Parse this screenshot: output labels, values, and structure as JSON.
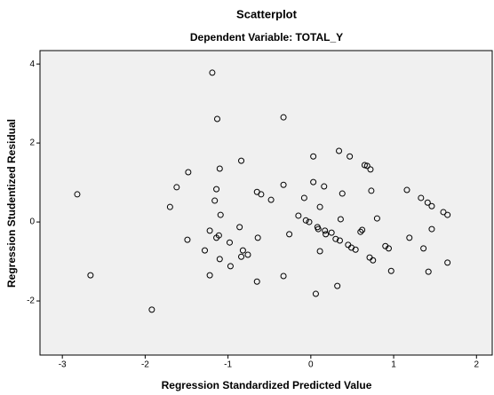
{
  "chart_data": {
    "type": "scatter",
    "title": "Scatterplot",
    "subtitle": "Dependent Variable: TOTAL_Y",
    "x_label": "Regression Standardized Predicted Value",
    "y_label": "Regression Studentized Residual",
    "xlim": [
      -3.27,
      2.19
    ],
    "ylim": [
      -3.37,
      4.34
    ],
    "xticks": [
      -3,
      -2,
      -1,
      0,
      1,
      2
    ],
    "yticks": [
      -2,
      0,
      2,
      4
    ],
    "color": "#000000",
    "background": "#f0f0f0",
    "series": [
      {
        "name": "Residuals",
        "color": "#000000",
        "x": [
          -1.19,
          -1.13,
          -0.33,
          -2.82,
          -2.66,
          -1.92,
          -1.48,
          -1.62,
          -1.7,
          -1.49,
          -1.1,
          -1.14,
          -1.09,
          -1.16,
          -1.22,
          -1.11,
          -1.14,
          -0.98,
          -1.28,
          -1.1,
          -0.97,
          -0.84,
          -1.22,
          -0.84,
          -0.86,
          -0.82,
          -0.76,
          -0.65,
          -0.6,
          -0.48,
          -0.64,
          -0.65,
          -0.33,
          -0.33,
          -0.26,
          -0.15,
          -0.06,
          -0.02,
          -0.08,
          0.03,
          0.03,
          0.16,
          0.11,
          0.08,
          0.09,
          0.17,
          0.18,
          0.3,
          0.25,
          0.35,
          0.11,
          0.06,
          0.32,
          0.34,
          0.47,
          0.38,
          0.36,
          0.45,
          0.49,
          0.54,
          0.62,
          0.6,
          0.65,
          0.68,
          0.72,
          0.73,
          0.8,
          0.71,
          0.75,
          0.9,
          0.94,
          0.97,
          1.16,
          1.19,
          1.33,
          1.41,
          1.46,
          1.46,
          1.36,
          1.42,
          1.6,
          1.65,
          1.65
        ],
        "values": [
          3.78,
          2.61,
          2.65,
          0.7,
          -1.35,
          -2.22,
          1.26,
          0.88,
          0.38,
          -0.45,
          1.35,
          0.83,
          0.18,
          0.54,
          -0.22,
          -0.34,
          -0.4,
          -0.52,
          -0.72,
          -0.94,
          -1.12,
          -0.88,
          -1.35,
          1.55,
          -0.13,
          -0.72,
          -0.83,
          0.76,
          0.7,
          0.56,
          -0.4,
          -1.51,
          0.94,
          -1.37,
          -0.31,
          0.16,
          0.04,
          0.0,
          0.61,
          1.66,
          1.01,
          0.9,
          0.38,
          -0.13,
          -0.18,
          -0.22,
          -0.31,
          -0.43,
          -0.27,
          -0.47,
          -0.74,
          -1.82,
          -1.62,
          1.8,
          1.66,
          0.72,
          0.07,
          -0.58,
          -0.65,
          -0.7,
          -0.2,
          -0.25,
          1.44,
          1.42,
          1.33,
          0.79,
          0.09,
          -0.9,
          -0.97,
          -0.61,
          -0.67,
          -1.24,
          0.81,
          -0.4,
          0.61,
          0.49,
          0.4,
          -0.18,
          -0.67,
          -1.26,
          0.25,
          0.18,
          -1.03
        ]
      }
    ]
  }
}
